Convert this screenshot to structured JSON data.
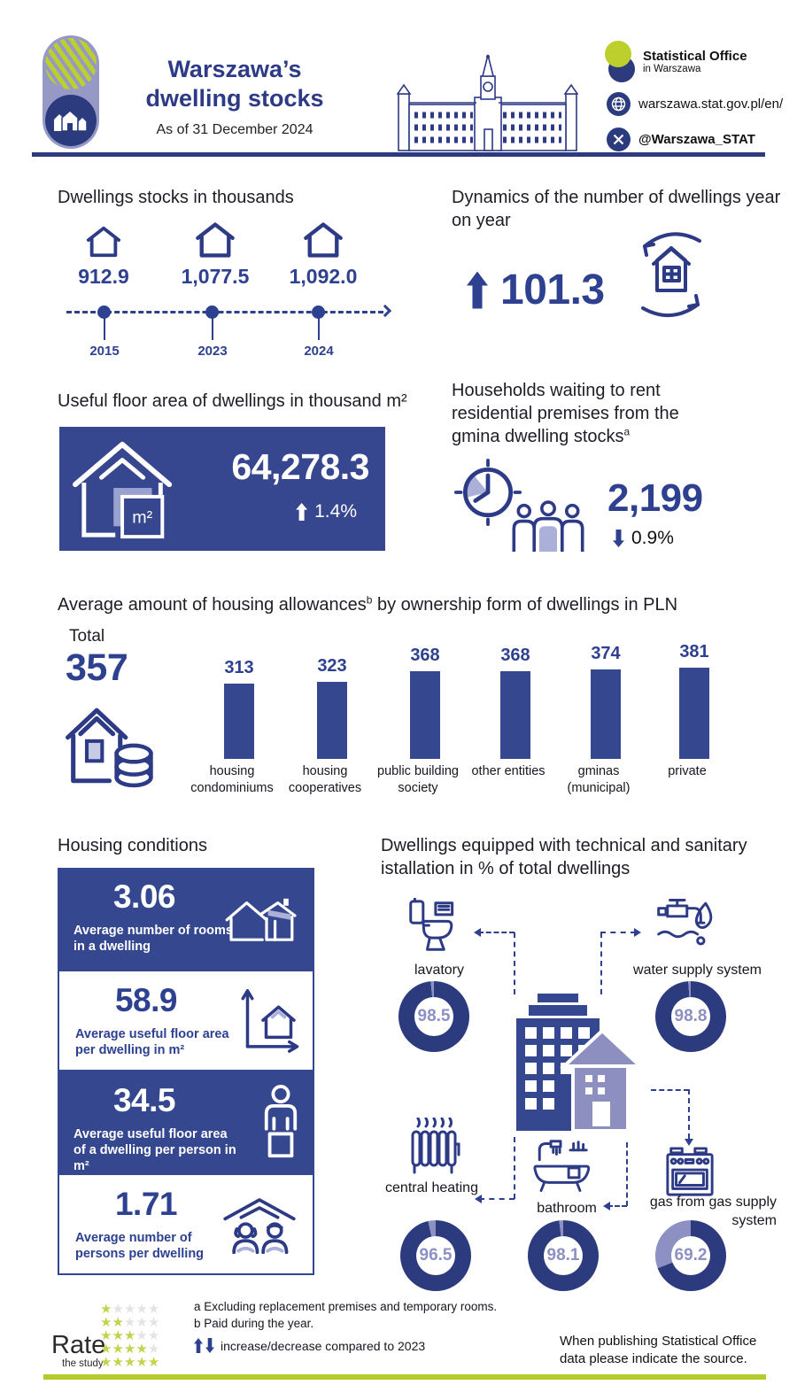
{
  "colors": {
    "navy": "#2e4190",
    "navy_deep": "#2c3a7e",
    "light_purple": "#8d90c2",
    "green": "#bccf2d"
  },
  "header": {
    "title_line1": "Warszawa’s",
    "title_line2": "dwelling stocks",
    "subtitle": "As of 31 December 2024",
    "office_line1": "Statistical Office",
    "office_line2": "in Warszawa",
    "website": "warszawa.stat.gov.pl/en/",
    "twitter": "@Warszawa_STAT"
  },
  "stocks": {
    "title": "Dwellings stocks in thousands",
    "timeline": [
      {
        "value": "912.9",
        "year": "2015"
      },
      {
        "value": "1,077.5",
        "year": "2023"
      },
      {
        "value": "1,092.0",
        "year": "2024"
      }
    ]
  },
  "dynamics": {
    "title": "Dynamics of the number of dwellings year on year",
    "value": "101.3"
  },
  "floor_area": {
    "title": "Useful floor area of dwellings in thousand m²",
    "value": "64,278.3",
    "change": "1.4%",
    "unit_label": "m²"
  },
  "waiting": {
    "title": "Households waiting to rent residential premises from the gmina dwelling stocks",
    "footnote_mark": "a",
    "value": "2,199",
    "change": "0.9%"
  },
  "allowances": {
    "title_part1": "Average amount of housing allowances",
    "footnote_mark": "b",
    "title_part2": " by ownership form of dwellings in PLN",
    "total_label": "Total",
    "total_value": "357",
    "bars": [
      {
        "value": 313,
        "label": "housing condominiums"
      },
      {
        "value": 323,
        "label": "housing cooperatives"
      },
      {
        "value": 368,
        "label": "public building society"
      },
      {
        "value": 368,
        "label": "other entities"
      },
      {
        "value": 374,
        "label": "gminas (municipal)"
      },
      {
        "value": 381,
        "label": "private"
      }
    ]
  },
  "conditions": {
    "title": "Housing conditions",
    "cards": [
      {
        "value": "3.06",
        "label": "Average number of rooms in a dwelling"
      },
      {
        "value": "58.9",
        "label": "Average useful floor area per dwelling in m²"
      },
      {
        "value": "34.5",
        "label": "Average useful floor area of a dwelling per person in m²"
      },
      {
        "value": "1.71",
        "label": "Average number of persons per dwelling"
      }
    ]
  },
  "equipment": {
    "title": "Dwellings equipped with technical and sanitary istallation in % of total dwellings",
    "items": [
      {
        "label": "lavatory",
        "value": 98.5
      },
      {
        "label": "water supply system",
        "value": 98.8
      },
      {
        "label": "central heating",
        "value": 96.5
      },
      {
        "label": "bathroom",
        "value": 98.1
      },
      {
        "label": "gas from gas supply system",
        "value": 69.2
      }
    ]
  },
  "footer": {
    "rate_title": "Rate",
    "rate_subtitle": "the study",
    "rating_rows": [
      1,
      2,
      3,
      4,
      5
    ],
    "note_a": "a Excluding replacement premises and temporary rooms.",
    "note_b": "b Paid during the year.",
    "legend": "increase/decrease compared to 2023",
    "source_note": "When publishing Statistical Office data please indicate the source."
  },
  "chart_data": [
    {
      "type": "line",
      "title": "Dwellings stocks in thousands",
      "x": [
        "2015",
        "2023",
        "2024"
      ],
      "values": [
        912.9,
        1077.5,
        1092.0
      ],
      "legend_position": "none",
      "grid": false
    },
    {
      "type": "bar",
      "title": "Average amount of housing allowances by ownership form of dwellings in PLN",
      "categories": [
        "housing condominiums",
        "housing cooperatives",
        "public building society",
        "other entities",
        "gminas (municipal)",
        "private"
      ],
      "values": [
        313,
        323,
        368,
        368,
        374,
        381
      ],
      "annotations": {
        "total": 357
      },
      "ylim": [
        0,
        400
      ],
      "grid": false
    },
    {
      "type": "pie",
      "title": "Dwellings equipped with technical and sanitary istallation in % of total dwellings",
      "categories": [
        "lavatory",
        "water supply system",
        "central heating",
        "bathroom",
        "gas from gas supply system"
      ],
      "values": [
        98.5,
        98.8,
        96.5,
        98.1,
        69.2
      ],
      "note": "each value is a separate donut, % of total dwellings"
    },
    {
      "type": "table",
      "title": "Key indicators",
      "categories": [
        "Dynamics of the number of dwellings year on year",
        "Useful floor area of dwellings in thousand m2",
        "Useful floor area change vs 2023",
        "Households waiting to rent from gmina stocks",
        "Households waiting change vs 2023",
        "Average rooms per dwelling",
        "Average useful floor area per dwelling m2",
        "Average useful floor area per person m2",
        "Average persons per dwelling"
      ],
      "values": [
        101.3,
        64278.3,
        1.4,
        2199,
        -0.9,
        3.06,
        58.9,
        34.5,
        1.71
      ]
    }
  ]
}
